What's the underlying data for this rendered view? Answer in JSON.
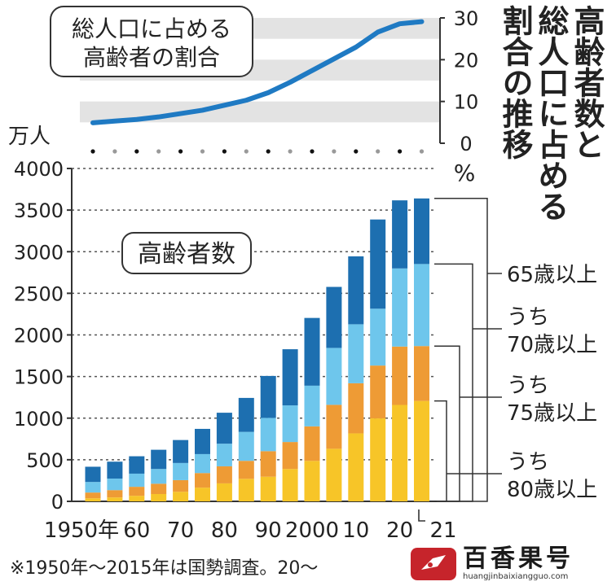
{
  "chart_data": [
    {
      "type": "line",
      "title": "総人口に占める高齢者の割合",
      "ylabel": "%",
      "ylim": [
        0,
        30
      ],
      "yticks": [
        0,
        10,
        20,
        30
      ],
      "x": [
        1950,
        1955,
        1960,
        1965,
        1970,
        1975,
        1980,
        1985,
        1990,
        1995,
        2000,
        2005,
        2010,
        2015,
        2020,
        2021
      ],
      "values": [
        4.9,
        5.3,
        5.7,
        6.3,
        7.1,
        7.9,
        9.1,
        10.3,
        12.1,
        14.6,
        17.4,
        20.2,
        23.0,
        26.6,
        28.6,
        29.1
      ],
      "color": "#1f7ac3",
      "grid_bands": true
    },
    {
      "type": "bar",
      "stacked": true,
      "title": "高齢者数",
      "ylabel": "万人",
      "ylim": [
        0,
        4000
      ],
      "yticks": [
        0,
        500,
        1000,
        1500,
        2000,
        2500,
        3000,
        3500,
        4000
      ],
      "x": [
        1950,
        1955,
        1960,
        1965,
        1970,
        1975,
        1980,
        1985,
        1990,
        1995,
        2000,
        2005,
        2010,
        2015,
        2020,
        2021
      ],
      "x_tick_labels": [
        "1950年",
        "60",
        "70",
        "80",
        "90",
        "2000",
        "10",
        "20",
        "21"
      ],
      "series": [
        {
          "name": "うち80歳以上",
          "color": "#f7c528",
          "values": [
            37,
            47,
            67,
            88,
            115,
            165,
            216,
            271,
            296,
            389,
            486,
            632,
            817,
            997,
            1159,
            1206
          ]
        },
        {
          "name": "うち75歳以上",
          "color": "#ee9b35",
          "values": [
            69,
            88,
            108,
            124,
            140,
            175,
            205,
            216,
            307,
            324,
            415,
            528,
            602,
            635,
            701,
            660
          ]
        },
        {
          "name": "うち70歳以上",
          "color": "#6ec6ec",
          "values": [
            127,
            139,
            158,
            177,
            206,
            228,
            272,
            348,
            400,
            440,
            489,
            684,
            709,
            683,
            939,
            986
          ]
        },
        {
          "name": "65歳以上",
          "color": "#1d6fb0",
          "values": [
            183,
            203,
            209,
            231,
            276,
            303,
            372,
            408,
            504,
            675,
            814,
            733,
            816,
            1072,
            818,
            788
          ]
        }
      ],
      "totals": [
        416,
        477,
        542,
        620,
        737,
        871,
        1065,
        1243,
        1507,
        1828,
        2204,
        2577,
        2944,
        3387,
        3617,
        3640
      ]
    }
  ],
  "title_vertical": [
    "高齢者数と",
    "総人口に占める",
    "割合の推移"
  ],
  "note": "※1950年～2015年は国勢調査。20～",
  "watermark": {
    "name": "百香果号",
    "url": "huangjinbaixiangguo.com"
  }
}
